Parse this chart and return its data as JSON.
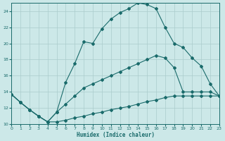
{
  "xlabel": "Humidex (Indice chaleur)",
  "background_color": "#cce8e8",
  "grid_color": "#aacccc",
  "line_color": "#1a6b6b",
  "xlim": [
    0,
    23
  ],
  "ylim": [
    10,
    25
  ],
  "yticks": [
    10,
    12,
    14,
    16,
    18,
    20,
    22,
    24
  ],
  "xticks": [
    0,
    1,
    2,
    3,
    4,
    5,
    6,
    7,
    8,
    9,
    10,
    11,
    12,
    13,
    14,
    15,
    16,
    17,
    18,
    19,
    20,
    21,
    22,
    23
  ],
  "line_peak_x": [
    0,
    1,
    2,
    3,
    4,
    5,
    6,
    7,
    8,
    9,
    10,
    11,
    12,
    13,
    14,
    15,
    16,
    17,
    18,
    19,
    20,
    21,
    22,
    23
  ],
  "line_peak_y": [
    13.7,
    12.7,
    11.8,
    11.0,
    10.3,
    11.5,
    15.2,
    17.5,
    20.2,
    20.0,
    21.8,
    23.0,
    23.8,
    24.3,
    25.0,
    24.8,
    24.3,
    22.0,
    20.0,
    19.5,
    18.2,
    17.2,
    15.0,
    13.5
  ],
  "line_mid_x": [
    0,
    1,
    2,
    3,
    4,
    5,
    6,
    7,
    8,
    9,
    10,
    11,
    12,
    13,
    14,
    15,
    16,
    17,
    18,
    19,
    20,
    21,
    22,
    23
  ],
  "line_mid_y": [
    13.7,
    12.7,
    11.8,
    11.0,
    10.3,
    11.5,
    12.5,
    13.5,
    14.5,
    15.0,
    15.5,
    16.0,
    16.5,
    17.0,
    17.5,
    18.0,
    18.5,
    18.2,
    17.0,
    14.0,
    14.0,
    14.0,
    14.0,
    13.5
  ],
  "line_low_x": [
    0,
    1,
    2,
    3,
    4,
    5,
    6,
    7,
    8,
    9,
    10,
    11,
    12,
    13,
    14,
    15,
    16,
    17,
    18,
    19,
    20,
    21,
    22,
    23
  ],
  "line_low_y": [
    13.7,
    12.7,
    11.8,
    11.0,
    10.3,
    10.3,
    10.5,
    10.8,
    11.0,
    11.3,
    11.5,
    11.8,
    12.0,
    12.2,
    12.5,
    12.8,
    13.0,
    13.3,
    13.5,
    13.5,
    13.5,
    13.5,
    13.5,
    13.5
  ]
}
